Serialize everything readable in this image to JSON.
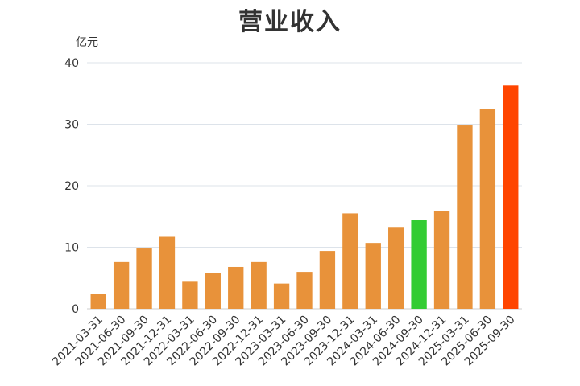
{
  "chart_data": {
    "type": "bar",
    "title": "营业收入",
    "ylabel": "亿元",
    "xlabel": "",
    "ylim": [
      0,
      40
    ],
    "yticks": [
      0,
      10,
      20,
      30,
      40
    ],
    "grid": true,
    "categories": [
      "2021-03-31",
      "2021-06-30",
      "2021-09-30",
      "2021-12-31",
      "2022-03-31",
      "2022-06-30",
      "2022-09-30",
      "2022-12-31",
      "2023-03-31",
      "2023-06-30",
      "2023-09-30",
      "2023-12-31",
      "2024-03-31",
      "2024-06-30",
      "2024-09-30",
      "2024-12-31",
      "2025-03-31",
      "2025-06-30",
      "2025-09-30"
    ],
    "values": [
      2.4,
      7.6,
      9.8,
      11.7,
      4.4,
      5.8,
      6.8,
      7.6,
      4.1,
      6.0,
      9.4,
      15.5,
      10.7,
      13.3,
      14.5,
      15.9,
      29.8,
      32.5,
      36.3
    ],
    "colors": {
      "default": "#E8923A",
      "highlight_green": "#33CC33",
      "highlight_red": "#FF4500",
      "grid": "#DDE3EA",
      "axis": "#CCCCCC"
    },
    "highlights": {
      "14": "highlight_green",
      "18": "highlight_red"
    }
  }
}
